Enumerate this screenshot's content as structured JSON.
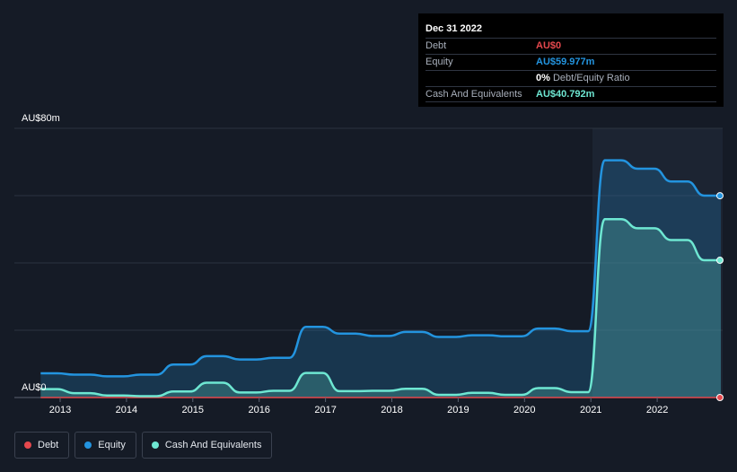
{
  "chart_data": {
    "type": "area",
    "y_axis": {
      "ylim": [
        0,
        80
      ],
      "tick_labels": [
        "AU$80m",
        "AU$0"
      ]
    },
    "x_axis": {
      "tick_labels": [
        "2013",
        "2014",
        "2015",
        "2016",
        "2017",
        "2018",
        "2019",
        "2020",
        "2021",
        "2022"
      ]
    },
    "grid": true,
    "legend_position": "bottom-left",
    "series": [
      {
        "name": "Debt",
        "color": "#e5484d",
        "x": [
          "2012-09-30",
          "2022-12-31"
        ],
        "values": [
          0,
          0
        ]
      },
      {
        "name": "Equity",
        "color": "#2394df",
        "x": [
          "2012-09-30",
          "2012-12-31",
          "2013-03-31",
          "2013-06-30",
          "2013-09-30",
          "2013-12-31",
          "2014-03-31",
          "2014-06-30",
          "2014-09-30",
          "2014-12-31",
          "2015-03-31",
          "2015-06-30",
          "2015-09-30",
          "2015-12-31",
          "2016-03-31",
          "2016-06-30",
          "2016-09-30",
          "2016-12-31",
          "2017-03-31",
          "2017-06-30",
          "2017-09-30",
          "2017-12-31",
          "2018-03-31",
          "2018-06-30",
          "2018-09-30",
          "2018-12-31",
          "2019-03-31",
          "2019-06-30",
          "2019-09-30",
          "2019-12-31",
          "2020-03-31",
          "2020-06-30",
          "2020-09-30",
          "2020-12-31",
          "2021-03-31",
          "2021-06-30",
          "2021-09-30",
          "2021-12-31",
          "2022-03-31",
          "2022-06-30",
          "2022-09-30",
          "2022-12-31"
        ],
        "values": [
          7.2,
          7.2,
          6.8,
          6.8,
          6.3,
          6.3,
          6.8,
          6.8,
          9.8,
          9.8,
          12.3,
          12.3,
          11.3,
          11.3,
          11.8,
          11.8,
          21.0,
          21.0,
          19.0,
          19.0,
          18.3,
          18.3,
          19.5,
          19.5,
          18.0,
          18.0,
          18.5,
          18.5,
          18.2,
          18.2,
          20.5,
          20.5,
          19.7,
          19.7,
          70.5,
          70.5,
          68.0,
          68.0,
          64.2,
          64.2,
          60.0,
          59.977
        ]
      },
      {
        "name": "Cash And Equivalents",
        "color": "#6ee7d2",
        "x": [
          "2012-09-30",
          "2012-12-31",
          "2013-03-31",
          "2013-06-30",
          "2013-09-30",
          "2013-12-31",
          "2014-03-31",
          "2014-06-30",
          "2014-09-30",
          "2014-12-31",
          "2015-03-31",
          "2015-06-30",
          "2015-09-30",
          "2015-12-31",
          "2016-03-31",
          "2016-06-30",
          "2016-09-30",
          "2016-12-31",
          "2017-03-31",
          "2017-06-30",
          "2017-09-30",
          "2017-12-31",
          "2018-03-31",
          "2018-06-30",
          "2018-09-30",
          "2018-12-31",
          "2019-03-31",
          "2019-06-30",
          "2019-09-30",
          "2019-12-31",
          "2020-03-31",
          "2020-06-30",
          "2020-09-30",
          "2020-12-31",
          "2021-03-31",
          "2021-06-30",
          "2021-09-30",
          "2021-12-31",
          "2022-03-31",
          "2022-06-30",
          "2022-09-30",
          "2022-12-31"
        ],
        "values": [
          2.5,
          2.5,
          1.3,
          1.3,
          0.6,
          0.6,
          0.4,
          0.4,
          1.8,
          1.8,
          4.4,
          4.4,
          1.5,
          1.5,
          2.0,
          2.0,
          7.3,
          7.3,
          1.9,
          1.9,
          2.0,
          2.0,
          2.6,
          2.6,
          0.8,
          0.8,
          1.4,
          1.4,
          0.8,
          0.8,
          2.8,
          2.8,
          1.6,
          1.6,
          53.0,
          53.0,
          50.3,
          50.3,
          46.8,
          46.8,
          40.8,
          40.792
        ]
      }
    ]
  },
  "tooltip": {
    "date": "Dec 31 2022",
    "rows": [
      {
        "label": "Debt",
        "value": "AU$0",
        "color": "#e5484d"
      },
      {
        "label": "Equity",
        "value": "AU$59.977m",
        "color": "#2394df"
      },
      {
        "label": "",
        "value": "0%",
        "sub": "Debt/Equity Ratio",
        "color": "#ffffff"
      },
      {
        "label": "Cash And Equivalents",
        "value": "AU$40.792m",
        "color": "#6ee7d2"
      }
    ]
  },
  "legend": [
    {
      "label": "Debt",
      "color": "#e5484d"
    },
    {
      "label": "Equity",
      "color": "#2394df"
    },
    {
      "label": "Cash And Equivalents",
      "color": "#6ee7d2"
    }
  ]
}
